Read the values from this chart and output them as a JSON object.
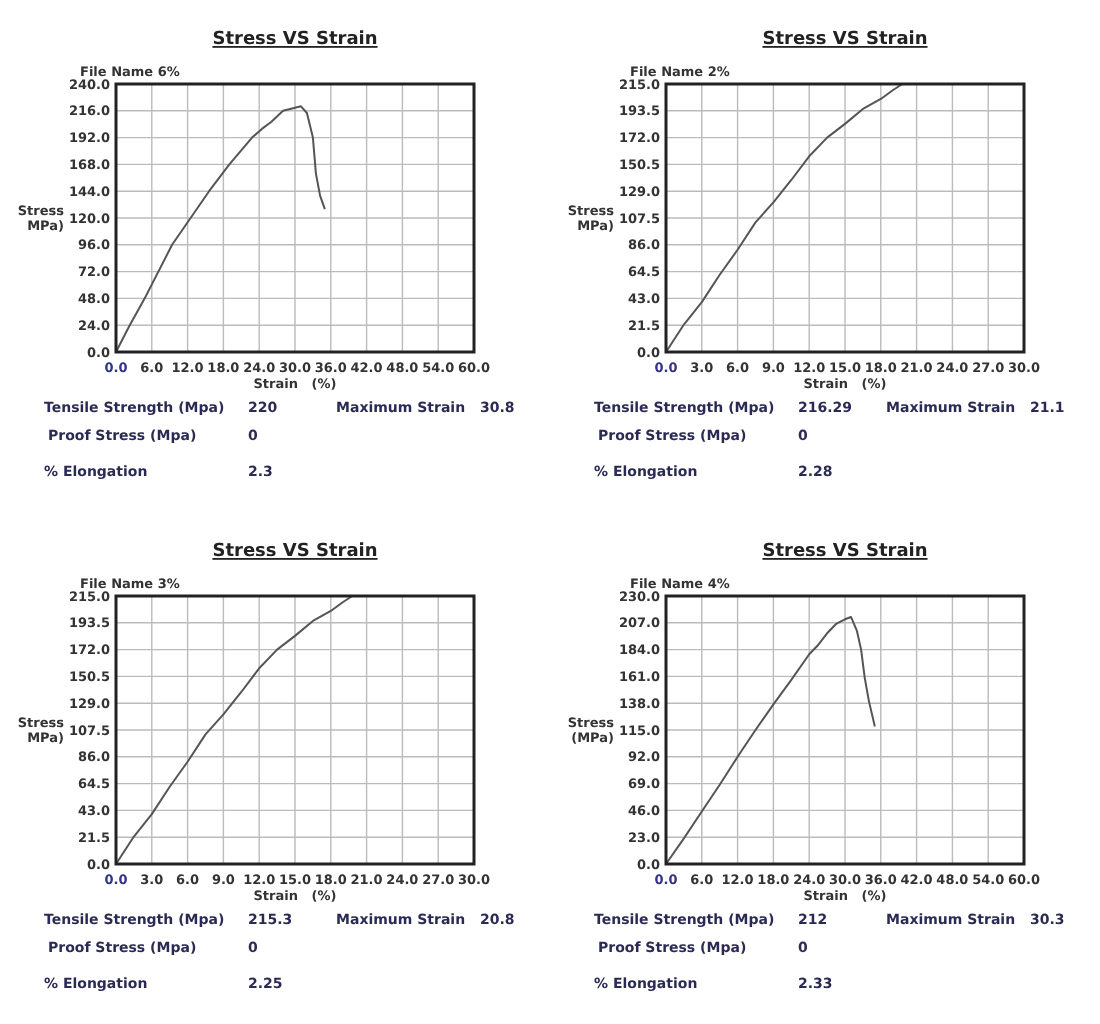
{
  "chart_data": [
    {
      "type": "line",
      "title": "Stress VS Strain",
      "xlabel": "Strain   (%)",
      "ylabel": "Stress MPa)",
      "grid": true,
      "marker": "none",
      "line_style": "solid",
      "xlim": [
        0,
        60
      ],
      "xticks": [
        {
          "value": 0,
          "label": "0.0"
        },
        {
          "value": 6,
          "label": "6.0"
        },
        {
          "value": 12,
          "label": "12.0"
        },
        {
          "value": 18,
          "label": "18.0"
        },
        {
          "value": 24,
          "label": "24.0"
        },
        {
          "value": 30,
          "label": "30.0"
        },
        {
          "value": 36,
          "label": "36.0"
        },
        {
          "value": 42,
          "label": "42.0"
        },
        {
          "value": 48,
          "label": "48.0"
        },
        {
          "value": 54,
          "label": "54.0"
        },
        {
          "value": 60,
          "label": "60.0"
        }
      ],
      "ylim": [
        0,
        240
      ],
      "yticks": [
        {
          "value": 0,
          "label": "0.0"
        },
        {
          "value": 24,
          "label": "24.0"
        },
        {
          "value": 48,
          "label": "48.0"
        },
        {
          "value": 72,
          "label": "72.0"
        },
        {
          "value": 96,
          "label": "96.0"
        },
        {
          "value": 120,
          "label": "120.0"
        },
        {
          "value": 144,
          "label": "144.0"
        },
        {
          "value": 168,
          "label": "168.0"
        },
        {
          "value": 192,
          "label": "192.0"
        },
        {
          "value": 216,
          "label": "216.0"
        },
        {
          "value": 240,
          "label": "240.0"
        }
      ],
      "annotations": [
        "File Name 6%",
        "Tensile Strength (Mpa)",
        "220",
        "Maximum Strain",
        "30.8",
        "Proof Stress (Mpa)",
        "0",
        "% Elongation",
        "2.3"
      ],
      "series": [
        {
          "color": "#555555",
          "x": [
            0,
            2.3,
            5,
            9.4,
            12.5,
            15.6,
            19,
            22.8,
            24.5,
            26,
            28,
            29.5,
            31,
            32,
            33,
            33.5,
            34.2,
            35
          ],
          "values": [
            0,
            24,
            50,
            96,
            120,
            144,
            168,
            192,
            200,
            206,
            216,
            218,
            220,
            214,
            192,
            160,
            140,
            128
          ]
        }
      ]
    },
    {
      "type": "line",
      "title": "Stress VS Strain",
      "xlabel": "Strain   (%)",
      "ylabel": "Stress MPa)",
      "grid": true,
      "marker": "none",
      "line_style": "solid",
      "xlim": [
        0,
        30
      ],
      "xticks": [
        {
          "value": 0,
          "label": "0.0"
        },
        {
          "value": 3,
          "label": "3.0"
        },
        {
          "value": 6,
          "label": "6.0"
        },
        {
          "value": 9,
          "label": "9.0"
        },
        {
          "value": 12,
          "label": "12.0"
        },
        {
          "value": 15,
          "label": "15.0"
        },
        {
          "value": 18,
          "label": "18.0"
        },
        {
          "value": 21,
          "label": "21.0"
        },
        {
          "value": 24,
          "label": "24.0"
        },
        {
          "value": 27,
          "label": "27.0"
        },
        {
          "value": 30,
          "label": "30.0"
        }
      ],
      "ylim": [
        0,
        215
      ],
      "yticks": [
        {
          "value": 0,
          "label": "0.0"
        },
        21.5,
        {
          "value": 43,
          "label": "43.0"
        },
        64.5,
        {
          "value": 86,
          "label": "86.0"
        },
        107.5,
        {
          "value": 129,
          "label": "129.0"
        },
        150.5,
        {
          "value": 172,
          "label": "172.0"
        },
        193.5,
        {
          "value": 215,
          "label": "215.0"
        }
      ],
      "annotations": [
        "File Name 2%",
        "Tensile Strength (Mpa)",
        "216.29",
        "Maximum Strain",
        "21.1",
        "Proof Stress (Mpa)",
        "0",
        "% Elongation",
        "2.28"
      ],
      "series": [
        {
          "color": "#555555",
          "x": [
            0,
            1.5,
            3,
            4.5,
            6,
            7.5,
            9,
            10.5,
            12,
            13.5,
            15,
            16.5,
            18,
            19,
            19.8
          ],
          "values": [
            0,
            22,
            40,
            62,
            82,
            104,
            120,
            138,
            157,
            172,
            183,
            195,
            203,
            210,
            215
          ]
        }
      ]
    },
    {
      "type": "line",
      "title": "Stress VS Strain",
      "xlabel": "Strain   (%)",
      "ylabel": "Stress MPa)",
      "grid": true,
      "marker": "none",
      "line_style": "solid",
      "xlim": [
        0,
        30
      ],
      "xticks": [
        {
          "value": 0,
          "label": "0.0"
        },
        {
          "value": 3,
          "label": "3.0"
        },
        {
          "value": 6,
          "label": "6.0"
        },
        {
          "value": 9,
          "label": "9.0"
        },
        {
          "value": 12,
          "label": "12.0"
        },
        {
          "value": 15,
          "label": "15.0"
        },
        {
          "value": 18,
          "label": "18.0"
        },
        {
          "value": 21,
          "label": "21.0"
        },
        {
          "value": 24,
          "label": "24.0"
        },
        {
          "value": 27,
          "label": "27.0"
        },
        {
          "value": 30,
          "label": "30.0"
        }
      ],
      "ylim": [
        0,
        215
      ],
      "yticks": [
        {
          "value": 0,
          "label": "0.0"
        },
        21.5,
        {
          "value": 43,
          "label": "43.0"
        },
        64.5,
        {
          "value": 86,
          "label": "86.0"
        },
        107.5,
        {
          "value": 129,
          "label": "129.0"
        },
        150.5,
        {
          "value": 172,
          "label": "172.0"
        },
        193.5,
        {
          "value": 215,
          "label": "215.0"
        }
      ],
      "annotations": [
        "File Name 3%",
        "Tensile Strength (Mpa)",
        "215.3",
        "Maximum Strain",
        "20.8",
        "Proof Stress (Mpa)",
        "0",
        "% Elongation",
        "2.25"
      ],
      "series": [
        {
          "color": "#555555",
          "x": [
            0,
            1.5,
            3,
            4.5,
            6,
            7.5,
            9,
            10.5,
            12,
            13.5,
            15,
            16.5,
            18,
            19,
            19.8
          ],
          "values": [
            0,
            22,
            40,
            62,
            82,
            104,
            120,
            138,
            157,
            172,
            183,
            195,
            203,
            210,
            215
          ]
        }
      ]
    },
    {
      "type": "line",
      "title": "Stress VS Strain",
      "xlabel": "Strain   (%)",
      "ylabel": "Stress (MPa)",
      "grid": true,
      "marker": "none",
      "line_style": "solid",
      "xlim": [
        0,
        60
      ],
      "xticks": [
        {
          "value": 0,
          "label": "0.0"
        },
        {
          "value": 6,
          "label": "6.0"
        },
        {
          "value": 12,
          "label": "12.0"
        },
        {
          "value": 18,
          "label": "18.0"
        },
        {
          "value": 24,
          "label": "24.0"
        },
        {
          "value": 30,
          "label": "30.0"
        },
        {
          "value": 36,
          "label": "36.0"
        },
        {
          "value": 42,
          "label": "42.0"
        },
        {
          "value": 48,
          "label": "48.0"
        },
        {
          "value": 54,
          "label": "54.0"
        },
        {
          "value": 60,
          "label": "60.0"
        }
      ],
      "ylim": [
        0,
        230
      ],
      "yticks": [
        {
          "value": 0,
          "label": "0.0"
        },
        {
          "value": 23,
          "label": "23.0"
        },
        {
          "value": 46,
          "label": "46.0"
        },
        {
          "value": 69,
          "label": "69.0"
        },
        {
          "value": 92,
          "label": "92.0"
        },
        {
          "value": 115,
          "label": "115.0"
        },
        {
          "value": 138,
          "label": "138.0"
        },
        {
          "value": 161,
          "label": "161.0"
        },
        {
          "value": 184,
          "label": "184.0"
        },
        {
          "value": 207,
          "label": "207.0"
        },
        {
          "value": 230,
          "label": "230.0"
        }
      ],
      "annotations": [
        "File Name 4%",
        "Tensile Strength (Mpa)",
        "212",
        "Maximum Strain",
        "30.3",
        "Proof Stress (Mpa)",
        "0",
        "% Elongation",
        "2.33"
      ],
      "series": [
        {
          "color": "#555555",
          "x": [
            0,
            3,
            6,
            9,
            12,
            15,
            18,
            21,
            24,
            25.5,
            27,
            28.5,
            30,
            31,
            32,
            32.7,
            33.3,
            34,
            35
          ],
          "values": [
            0,
            22,
            45,
            68,
            92,
            115,
            137,
            158,
            180,
            188,
            198,
            206,
            210,
            212,
            200,
            184,
            160,
            140,
            118
          ]
        }
      ]
    }
  ]
}
